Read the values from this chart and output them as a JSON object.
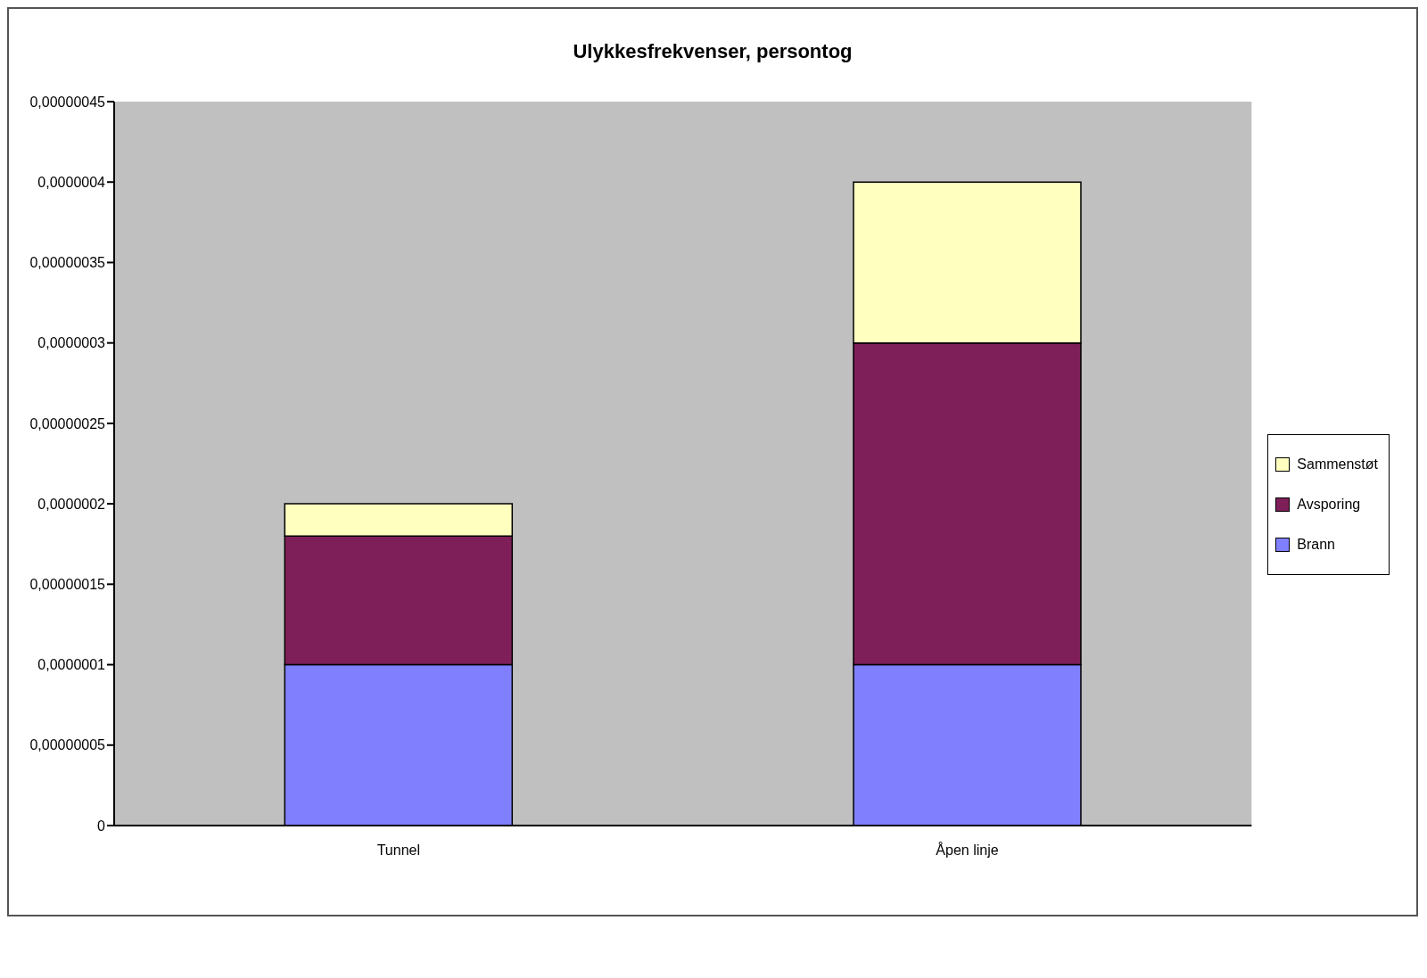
{
  "chart_data": {
    "type": "bar",
    "title": "Ulykkesfrekvenser, persontog",
    "categories": [
      "Tunnel",
      "Åpen linje"
    ],
    "series": [
      {
        "name": "Brann",
        "color": "#8080ff",
        "values": [
          1e-07,
          1e-07
        ]
      },
      {
        "name": "Avsporing",
        "color": "#7f1f5a",
        "values": [
          8e-08,
          2e-07
        ]
      },
      {
        "name": "Sammenstøt",
        "color": "#ffffc0",
        "values": [
          2e-08,
          1e-07
        ]
      }
    ],
    "stacked": true,
    "ylim": [
      0,
      4.5e-07
    ],
    "yticks": [
      0,
      {
        "value": 5e-08,
        "label": "0,00000005"
      },
      {
        "value": 1e-07,
        "label": "0,0000001"
      },
      {
        "value": 1.5e-07,
        "label": "0,00000015"
      },
      {
        "value": 2e-07,
        "label": "0,0000002"
      },
      {
        "value": 2.5e-07,
        "label": "0,00000025"
      },
      {
        "value": 3e-07,
        "label": "0,0000003"
      },
      {
        "value": 3.5e-07,
        "label": "0,00000035"
      },
      {
        "value": 4e-07,
        "label": "0,0000004"
      },
      {
        "value": 4.5e-07,
        "label": "0,00000045"
      }
    ],
    "grid": false,
    "legend": "right"
  }
}
